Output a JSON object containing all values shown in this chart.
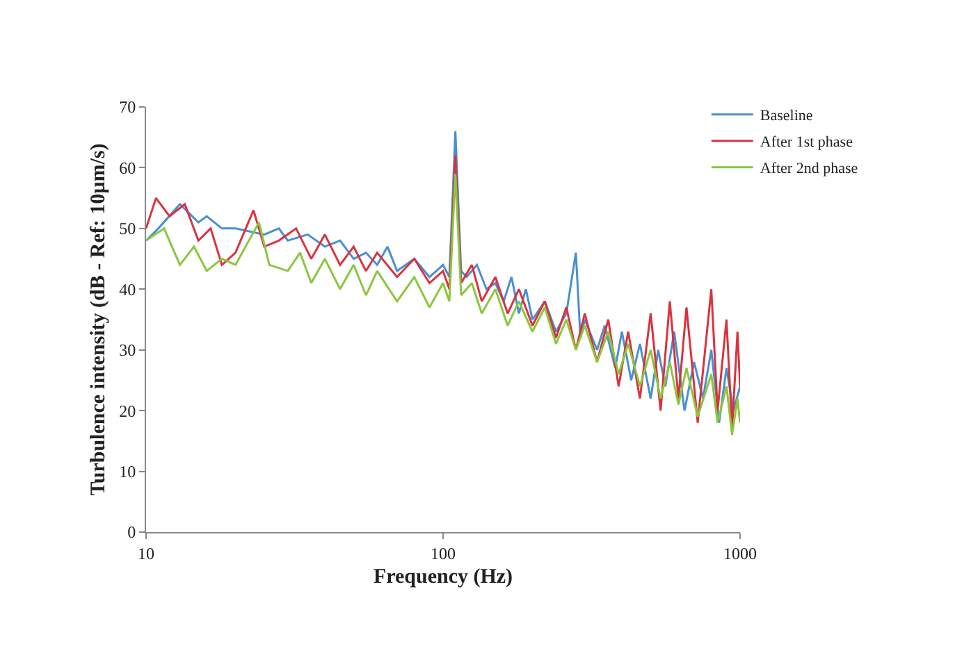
{
  "chart_data": {
    "type": "line",
    "xlabel": "Frequency (Hz)",
    "ylabel": "Turbulence intensity (dB - Ref: 10µm/s)",
    "log": "x",
    "xlim": [
      10,
      1000
    ],
    "xticks": [
      10,
      100,
      1000
    ],
    "ylim": [
      0,
      70
    ],
    "yticks": [
      0,
      10,
      20,
      30,
      40,
      50,
      60,
      70
    ],
    "legend": "top right",
    "marker": "none",
    "line_style": "solid",
    "series": [
      {
        "name": "Baseline",
        "color": "#4a8fd0",
        "x": [
          10,
          11,
          13,
          15,
          16,
          18,
          20,
          25,
          28,
          30,
          35,
          40,
          45,
          50,
          55,
          60,
          65,
          70,
          80,
          90,
          100,
          105,
          110,
          115,
          120,
          130,
          140,
          150,
          160,
          170,
          180,
          190,
          200,
          220,
          240,
          260,
          280,
          290,
          300,
          330,
          350,
          380,
          400,
          430,
          460,
          500,
          530,
          560,
          600,
          650,
          700,
          750,
          800,
          850,
          900,
          950,
          1000
        ],
        "values": [
          48,
          50,
          54,
          51,
          52,
          50,
          50,
          49,
          50,
          48,
          49,
          47,
          48,
          45,
          46,
          44,
          47,
          43,
          45,
          42,
          44,
          42,
          66,
          43,
          42,
          44,
          40,
          41,
          38,
          42,
          36,
          40,
          35,
          38,
          33,
          36,
          46,
          32,
          35,
          30,
          34,
          27,
          33,
          25,
          31,
          22,
          30,
          24,
          33,
          20,
          28,
          22,
          30,
          18,
          27,
          20,
          24
        ]
      },
      {
        "name": "After 1st phase",
        "color": "#d9333f",
        "x": [
          10,
          10.8,
          12,
          13.5,
          15,
          16.5,
          18,
          20,
          23,
          25,
          28,
          32,
          36,
          40,
          45,
          50,
          55,
          60,
          70,
          80,
          90,
          100,
          105,
          110,
          115,
          125,
          135,
          150,
          165,
          180,
          200,
          220,
          240,
          260,
          280,
          300,
          330,
          360,
          390,
          420,
          460,
          500,
          540,
          580,
          620,
          660,
          720,
          800,
          840,
          900,
          940,
          980,
          1000
        ],
        "values": [
          50,
          55,
          52,
          54,
          48,
          50,
          44,
          46,
          53,
          47,
          48,
          50,
          45,
          49,
          44,
          47,
          43,
          46,
          42,
          45,
          41,
          43,
          40,
          62,
          41,
          44,
          38,
          42,
          36,
          40,
          34,
          38,
          32,
          37,
          30,
          36,
          28,
          35,
          24,
          33,
          22,
          36,
          20,
          38,
          22,
          37,
          18,
          40,
          20,
          35,
          17,
          33,
          24
        ]
      },
      {
        "name": "After 2nd phase",
        "color": "#8cc63f",
        "x": [
          10,
          11.5,
          13,
          14.5,
          16,
          18,
          20,
          24,
          26,
          30,
          33,
          36,
          40,
          45,
          50,
          55,
          60,
          70,
          80,
          90,
          100,
          105,
          110,
          115,
          125,
          135,
          150,
          165,
          180,
          200,
          220,
          240,
          260,
          280,
          300,
          330,
          360,
          390,
          420,
          460,
          500,
          540,
          580,
          620,
          660,
          720,
          800,
          840,
          900,
          940,
          980,
          1000
        ],
        "values": [
          48,
          50,
          44,
          47,
          43,
          45,
          44,
          51,
          44,
          43,
          46,
          41,
          45,
          40,
          44,
          39,
          43,
          38,
          42,
          37,
          41,
          38,
          59,
          39,
          41,
          36,
          40,
          34,
          38,
          33,
          37,
          31,
          35,
          30,
          34,
          28,
          33,
          26,
          31,
          24,
          30,
          22,
          28,
          21,
          27,
          19,
          26,
          18,
          24,
          16,
          22,
          18
        ]
      }
    ]
  }
}
